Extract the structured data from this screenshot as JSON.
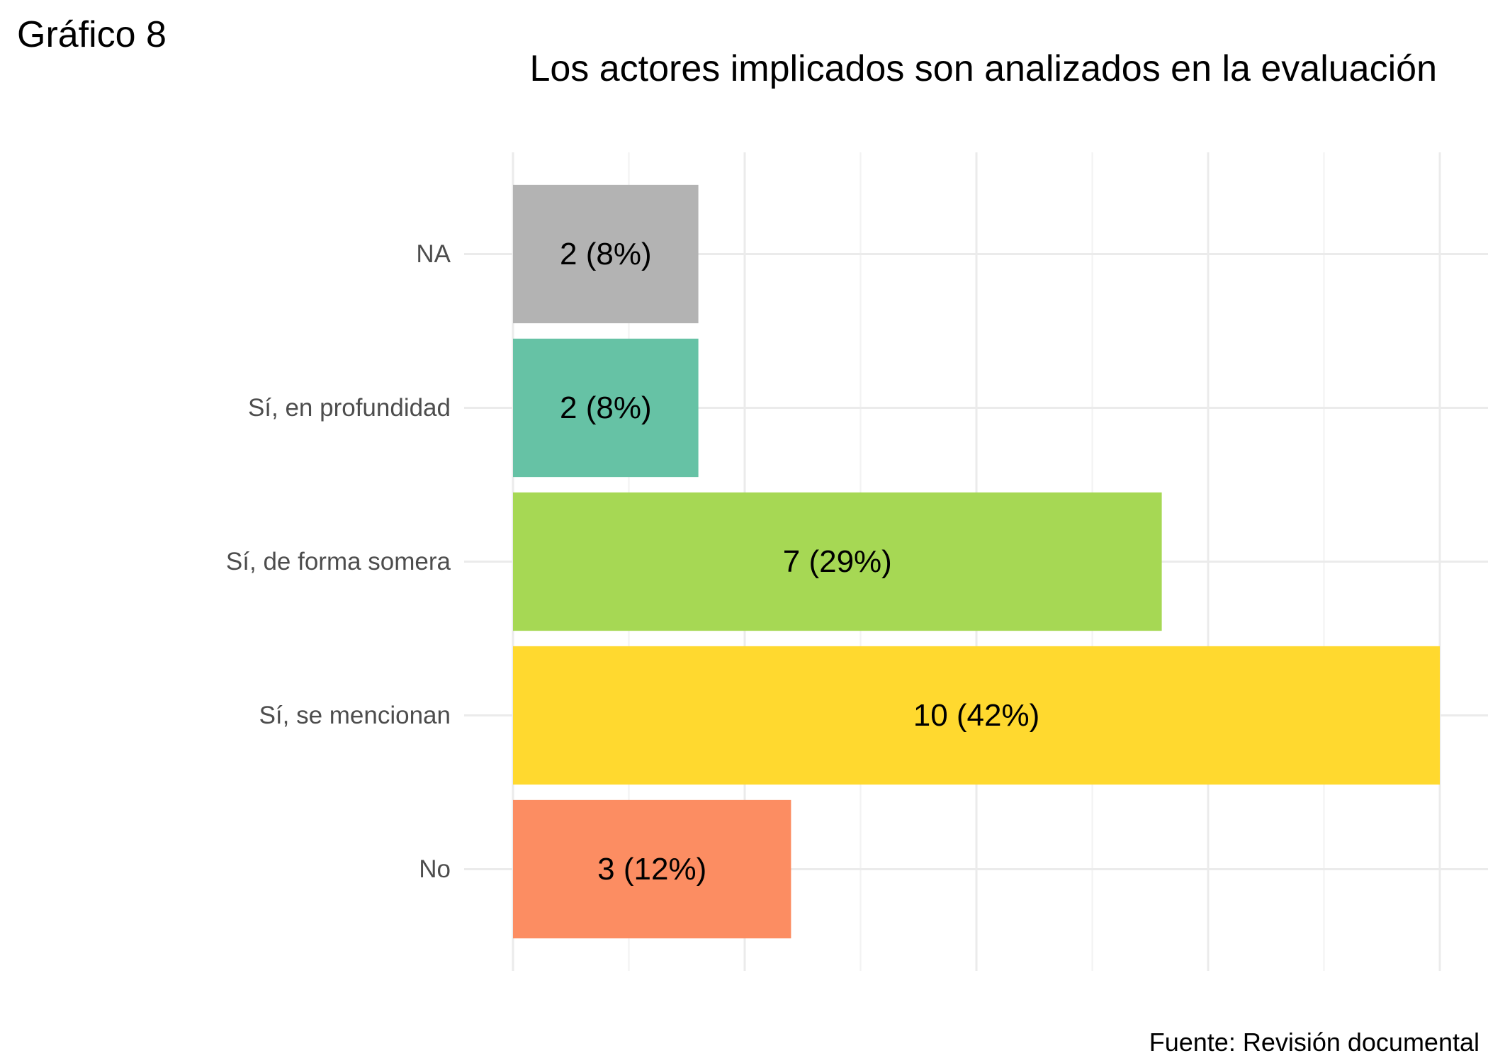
{
  "figure_label": "Gráfico 8",
  "caption": "Fuente: Revisión documental",
  "chart_data": {
    "type": "bar",
    "orientation": "horizontal",
    "title": "Los actores implicados son analizados en la evaluación",
    "xlabel": "",
    "ylabel": "",
    "categories": [
      "NA",
      "Sí, en profundidad",
      "Sí, de forma somera",
      "Sí, se mencionan",
      "No"
    ],
    "values": [
      2,
      2,
      7,
      10,
      3
    ],
    "data_labels": [
      "2 (8%)",
      "2 (8%)",
      "7 (29%)",
      "10 (42%)",
      "3 (12%)"
    ],
    "colors": [
      "#B3B3B3",
      "#66C2A5",
      "#A6D854",
      "#FFD92F",
      "#FC8D62"
    ],
    "xlim": [
      0,
      10
    ],
    "grid": true,
    "legend": "none",
    "x_tick_labels_shown": false
  }
}
